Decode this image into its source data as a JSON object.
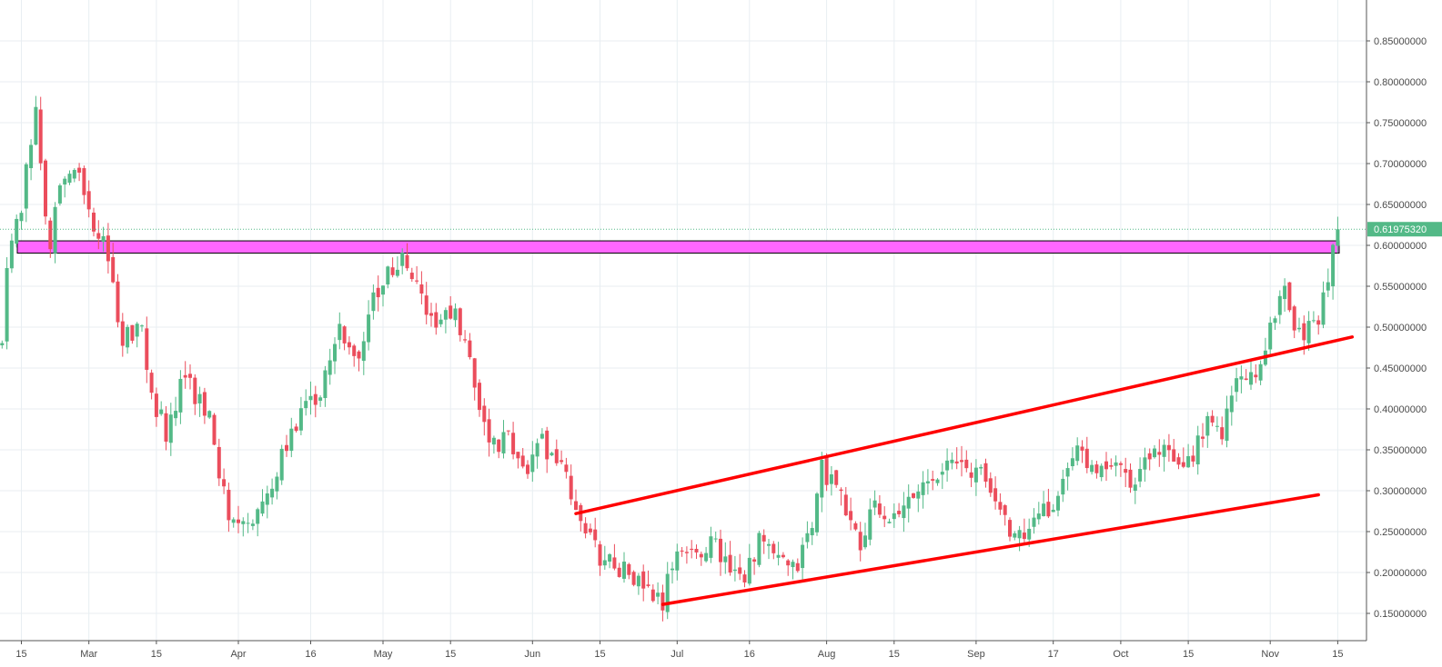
{
  "chart_data": {
    "type": "candlestick",
    "title": "",
    "xlabel": "",
    "ylabel": "",
    "ylim": [
      0.13,
      0.89
    ],
    "grid": true,
    "colors": {
      "up": "#53b987",
      "down": "#eb4d5c",
      "grid": "#e8eef2",
      "resistance_zone": "#ff66ff",
      "trendline": "#ff0000",
      "price_badge": "#53b987",
      "axis_text": "#4a4a4a"
    },
    "y_ticks": [
      "0.15000000",
      "0.20000000",
      "0.25000000",
      "0.30000000",
      "0.35000000",
      "0.40000000",
      "0.45000000",
      "0.50000000",
      "0.55000000",
      "0.60000000",
      "0.65000000",
      "0.70000000",
      "0.75000000",
      "0.80000000",
      "0.85000000"
    ],
    "y_tick_values": [
      0.15,
      0.2,
      0.25,
      0.3,
      0.35,
      0.4,
      0.45,
      0.5,
      0.55,
      0.6,
      0.65,
      0.7,
      0.75,
      0.8,
      0.85
    ],
    "x_ticks": [
      "15",
      "Mar",
      "15",
      "Apr",
      "16",
      "May",
      "15",
      "Jun",
      "15",
      "Jul",
      "16",
      "Aug",
      "15",
      "Sep",
      "17",
      "Oct",
      "15",
      "Nov",
      "15"
    ],
    "x_tick_values": [
      "2018-02-15",
      "2018-03-01",
      "2018-03-15",
      "2018-04-01",
      "2018-04-16",
      "2018-05-01",
      "2018-05-15",
      "2018-06-01",
      "2018-06-15",
      "2018-07-01",
      "2018-07-16",
      "2018-08-01",
      "2018-08-15",
      "2018-09-01",
      "2018-09-17",
      "2018-10-01",
      "2018-10-15",
      "2018-11-01",
      "2018-11-15"
    ],
    "current_price": {
      "label": "0.61975320",
      "value": 0.61975
    }
  }
}
